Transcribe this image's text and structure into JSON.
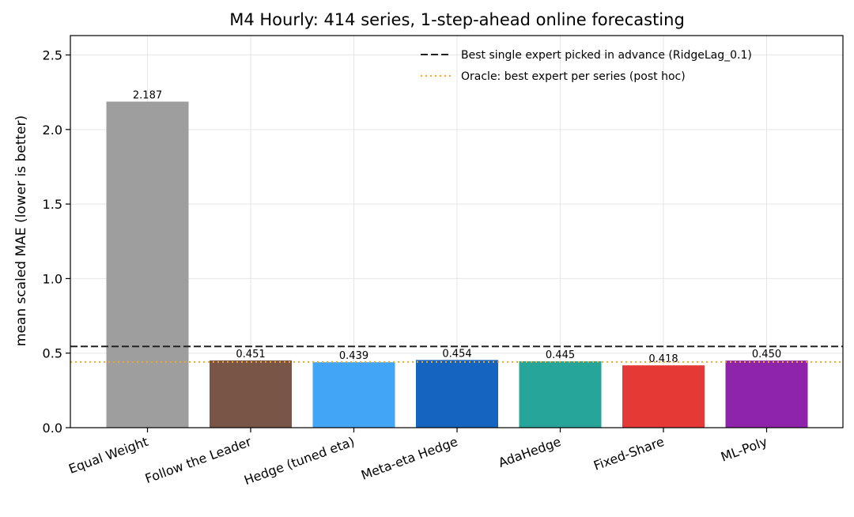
{
  "chart_data": {
    "type": "bar",
    "title": "M4 Hourly: 414 series, 1-step-ahead online forecasting",
    "xlabel": "",
    "ylabel": "mean scaled MAE (lower is better)",
    "ylim": [
      0,
      2.63
    ],
    "yticks": [
      "0.0",
      "0.5",
      "1.0",
      "1.5",
      "2.0",
      "2.5"
    ],
    "grid": true,
    "legend_position": "top-right",
    "categories": [
      "Equal Weight",
      "Follow the Leader",
      "Hedge (tuned eta)",
      "Meta-eta Hedge",
      "AdaHedge",
      "Fixed-Share",
      "ML-Poly"
    ],
    "values": [
      2.187,
      0.451,
      0.439,
      0.454,
      0.445,
      0.418,
      0.45
    ],
    "value_labels": [
      "2.187",
      "0.451",
      "0.439",
      "0.454",
      "0.445",
      "0.418",
      "0.450"
    ],
    "colors": [
      "#9e9e9e",
      "#795548",
      "#42a5f5",
      "#1565c0",
      "#26a69a",
      "#e53935",
      "#8e24aa"
    ],
    "reference_lines": [
      {
        "label": "Best single expert picked in advance (RidgeLag_0.1)",
        "value": 0.545,
        "color": "#222222",
        "style": "dashed"
      },
      {
        "label": "Oracle: best expert per series (post hoc)",
        "value": 0.441,
        "color": "#f5a623",
        "style": "dotted"
      }
    ]
  }
}
